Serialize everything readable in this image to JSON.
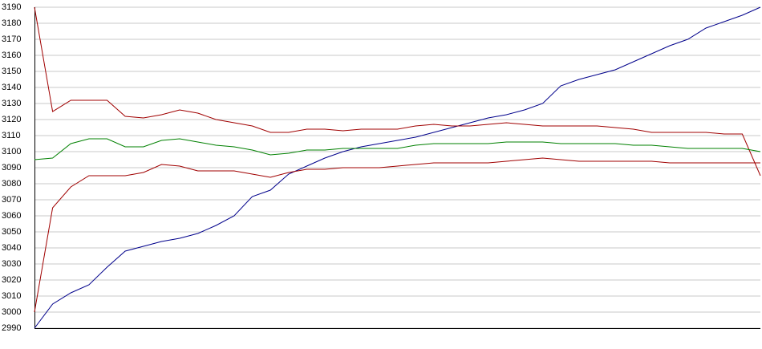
{
  "chart_data": {
    "type": "line",
    "ylim": [
      2990,
      3190
    ],
    "yticks": [
      2990,
      3000,
      3010,
      3020,
      3030,
      3040,
      3050,
      3060,
      3070,
      3080,
      3090,
      3100,
      3110,
      3120,
      3130,
      3140,
      3150,
      3160,
      3170,
      3180,
      3190
    ],
    "grid": true,
    "series": [
      {
        "color": "#00008b",
        "values": [
          2990,
          3005,
          3012,
          3017,
          3028,
          3038,
          3041,
          3044,
          3046,
          3049,
          3054,
          3060,
          3072,
          3076,
          3086,
          3091,
          3096,
          3100,
          3103,
          3105,
          3107,
          3109,
          3112,
          3115,
          3118,
          3121,
          3123,
          3126,
          3130,
          3141,
          3145,
          3148,
          3151,
          3156,
          3161,
          3166,
          3170,
          3177,
          3181,
          3185,
          3190
        ]
      },
      {
        "color": "#a00000",
        "values": [
          3190,
          3125,
          3132,
          3132,
          3132,
          3122,
          3121,
          3123,
          3126,
          3124,
          3120,
          3118,
          3116,
          3112,
          3112,
          3114,
          3114,
          3113,
          3114,
          3114,
          3114,
          3116,
          3117,
          3116,
          3116,
          3117,
          3118,
          3117,
          3116,
          3116,
          3116,
          3116,
          3115,
          3114,
          3112,
          3112,
          3112,
          3112,
          3111,
          3111,
          3085
        ]
      },
      {
        "color": "#008000",
        "values": [
          3095,
          3096,
          3105,
          3108,
          3108,
          3103,
          3103,
          3107,
          3108,
          3106,
          3104,
          3103,
          3101,
          3098,
          3099,
          3101,
          3101,
          3102,
          3102,
          3102,
          3102,
          3104,
          3105,
          3105,
          3105,
          3105,
          3106,
          3106,
          3106,
          3105,
          3105,
          3105,
          3105,
          3104,
          3104,
          3103,
          3102,
          3102,
          3102,
          3102,
          3100
        ]
      },
      {
        "color": "#a00000",
        "values": [
          3000,
          3065,
          3078,
          3085,
          3085,
          3085,
          3087,
          3092,
          3091,
          3088,
          3088,
          3088,
          3086,
          3084,
          3087,
          3089,
          3089,
          3090,
          3090,
          3090,
          3091,
          3092,
          3093,
          3093,
          3093,
          3093,
          3094,
          3095,
          3096,
          3095,
          3094,
          3094,
          3094,
          3094,
          3094,
          3093,
          3093,
          3093,
          3093,
          3093,
          3093
        ]
      }
    ]
  }
}
